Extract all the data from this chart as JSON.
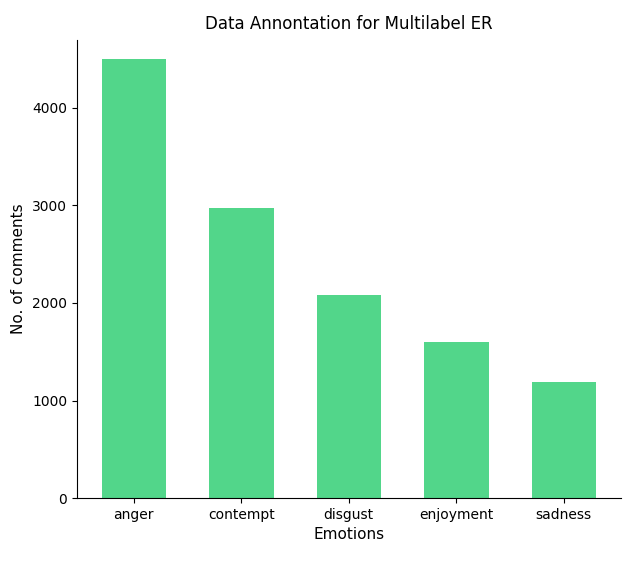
{
  "categories": [
    "anger",
    "contempt",
    "disgust",
    "enjoyment",
    "sadness"
  ],
  "values": [
    4500,
    2970,
    2080,
    1600,
    1190
  ],
  "bar_color": "#52d68a",
  "title": "Data Annontation for Multilabel ER",
  "xlabel": "Emotions",
  "ylabel": "No. of comments",
  "ylim": [
    0,
    4700
  ],
  "title_fontsize": 12,
  "label_fontsize": 11,
  "tick_fontsize": 10,
  "background_color": "#ffffff",
  "yticks": [
    0,
    1000,
    2000,
    3000,
    4000
  ]
}
